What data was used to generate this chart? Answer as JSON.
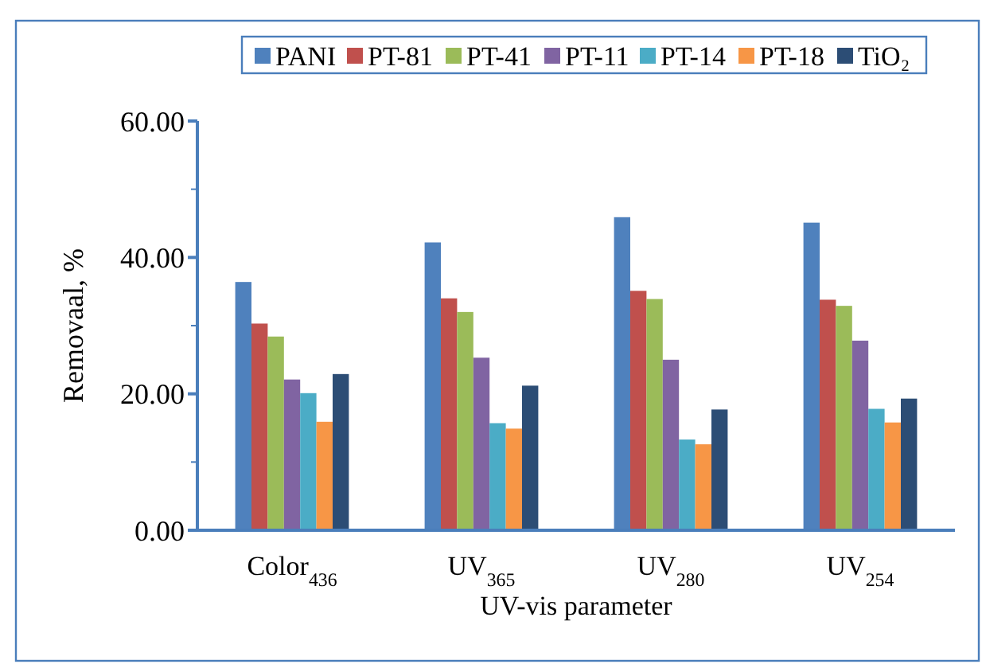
{
  "chart_data": {
    "type": "bar",
    "xlabel": "UV-vis parameter",
    "ylabel": "Removaal, %",
    "categories": [
      "Color$_{436}$",
      "UV$_{365}$",
      "UV$_{280}$",
      "UV$_{254}$"
    ],
    "series": [
      {
        "name": "PANI",
        "color": "#4f81bd",
        "values": [
          36.4,
          42.2,
          45.9,
          45.1
        ]
      },
      {
        "name": "PT-81",
        "color": "#c0504d",
        "values": [
          30.3,
          34.0,
          35.1,
          33.8
        ]
      },
      {
        "name": "PT-41",
        "color": "#9bbb59",
        "values": [
          28.4,
          32.0,
          33.9,
          32.9
        ]
      },
      {
        "name": "PT-11",
        "color": "#8064a2",
        "values": [
          22.1,
          25.3,
          25.0,
          27.8
        ]
      },
      {
        "name": "PT-14",
        "color": "#4bacc6",
        "values": [
          20.1,
          15.7,
          13.3,
          17.8
        ]
      },
      {
        "name": "PT-18",
        "color": "#f79646",
        "values": [
          15.9,
          14.9,
          12.6,
          15.8
        ]
      },
      {
        "name": "TiO₂",
        "color": "#2c4d75",
        "values": [
          22.9,
          21.2,
          17.7,
          19.3
        ]
      }
    ],
    "ylim": [
      0,
      60
    ],
    "yticks": [
      {
        "value": 0,
        "label": "0.00"
      },
      {
        "value": 10,
        "label": null
      },
      {
        "value": 20,
        "label": "20.00"
      },
      {
        "value": 30,
        "label": null
      },
      {
        "value": 40,
        "label": "40.00"
      },
      {
        "value": 50,
        "label": null
      },
      {
        "value": 60,
        "label": "60.00"
      }
    ],
    "grid": false,
    "legend": "top"
  }
}
